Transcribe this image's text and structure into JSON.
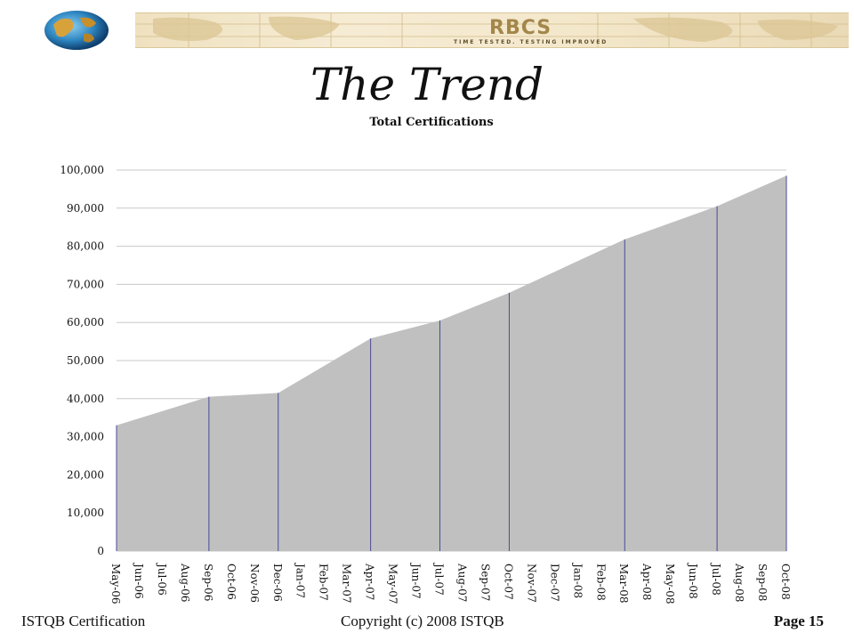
{
  "header": {
    "logo_text": "RBCS",
    "tagline": "TIME TESTED. TESTING IMPROVED"
  },
  "slide": {
    "title": "The Trend"
  },
  "footer": {
    "left": "ISTQB Certification",
    "center": "Copyright (c) 2008 ISTQB",
    "right": "Page 15"
  },
  "chart_data": {
    "type": "area",
    "title": "Total Certifications",
    "xlabel": "",
    "ylabel": "",
    "ylim": [
      0,
      100000
    ],
    "yticks": [
      0,
      10000,
      20000,
      30000,
      40000,
      50000,
      60000,
      70000,
      80000,
      90000,
      100000
    ],
    "ytick_labels": [
      "0",
      "10,000",
      "20,000",
      "30,000",
      "40,000",
      "50,000",
      "60,000",
      "70,000",
      "80,000",
      "90,000",
      "100,000"
    ],
    "grid": true,
    "legend": "none",
    "categories": [
      "May-06",
      "Jun-06",
      "Jul-06",
      "Aug-06",
      "Sep-06",
      "Oct-06",
      "Nov-06",
      "Dec-06",
      "Jan-07",
      "Feb-07",
      "Mar-07",
      "Apr-07",
      "May-07",
      "Jun-07",
      "Jul-07",
      "Aug-07",
      "Sep-07",
      "Oct-07",
      "Nov-07",
      "Dec-07",
      "Jan-08",
      "Feb-08",
      "Mar-08",
      "Apr-08",
      "May-08",
      "Jun-08",
      "Jul-08",
      "Aug-08",
      "Sep-08",
      "Oct-08"
    ],
    "points": [
      {
        "x": "May-06",
        "y": 33000
      },
      {
        "x": "Sep-06",
        "y": 40500
      },
      {
        "x": "Dec-06",
        "y": 41500
      },
      {
        "x": "Apr-07",
        "y": 55800
      },
      {
        "x": "Jul-07",
        "y": 60500
      },
      {
        "x": "Oct-07",
        "y": 67800
      },
      {
        "x": "Mar-08",
        "y": 81800
      },
      {
        "x": "Jul-08",
        "y": 90500
      },
      {
        "x": "Oct-08",
        "y": 98500
      }
    ],
    "colors": {
      "fill": "#c0c0c0",
      "marker_line": "#4a4a9a",
      "grid": "#c8c8c8"
    }
  }
}
